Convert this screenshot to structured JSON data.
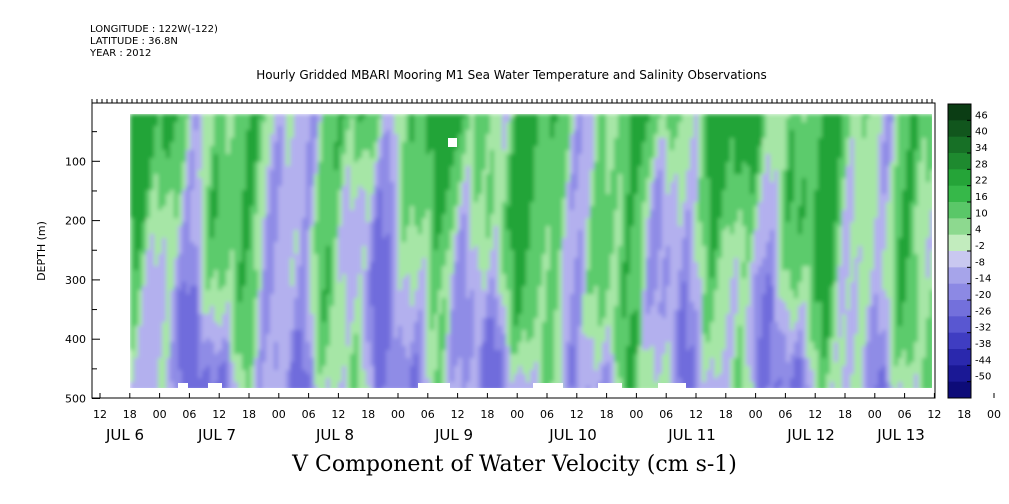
{
  "header": {
    "longitude": "LONGITUDE : 122W(-122)",
    "latitude": "LATITUDE : 36.8N",
    "year": "YEAR : 2012"
  },
  "chart_data": {
    "type": "heatmap",
    "title": "Hourly Gridded MBARI Mooring M1 Sea Water Temperature and Salinity Observations",
    "xlabel": "V Component of Water Velocity (cm s-1)",
    "ylabel": "DEPTH (m)",
    "y_axis": {
      "range": [
        0,
        500
      ],
      "reversed": true,
      "ticks": [
        100,
        200,
        300,
        400,
        500
      ],
      "tick_labels": [
        "100",
        "200",
        "300",
        "400",
        "500"
      ]
    },
    "x_axis": {
      "hour_labels": [
        "12",
        "18",
        "00",
        "06",
        "12",
        "18",
        "00",
        "06",
        "12",
        "18",
        "00",
        "06",
        "12",
        "18",
        "00",
        "06",
        "12",
        "18",
        "00",
        "06",
        "12",
        "18",
        "00",
        "06",
        "12",
        "18",
        "00",
        "06",
        "12",
        "18",
        "00",
        "06"
      ],
      "day_labels": [
        "JUL 6",
        "JUL 7",
        "JUL 8",
        "JUL 9",
        "JUL 10",
        "JUL 11",
        "JUL 12",
        "JUL 13"
      ]
    },
    "colorbar": {
      "labels": [
        "46",
        "40",
        "34",
        "28",
        "22",
        "16",
        "10",
        "4",
        "-2",
        "-8",
        "-14",
        "-20",
        "-26",
        "-32",
        "-38",
        "-44",
        "-50"
      ],
      "colors": [
        "#0b3d14",
        "#11561d",
        "#177026",
        "#1e8a2f",
        "#25a438",
        "#36b849",
        "#5ac768",
        "#8dd98f",
        "#c2ecbe",
        "#c9c8f0",
        "#a6a4ea",
        "#8c89e4",
        "#7370dc",
        "#5957d1",
        "#3f3dc2",
        "#2a28ad",
        "#1a1895",
        "#0d0b78"
      ]
    },
    "colors": {
      "green_high": "#22a438",
      "green_mid": "#5ccb6c",
      "green_low": "#a6e6a6",
      "blue_low": "#b3b0ee",
      "blue_mid": "#8f8ce6",
      "blue_high": "#6f6cdc"
    }
  }
}
